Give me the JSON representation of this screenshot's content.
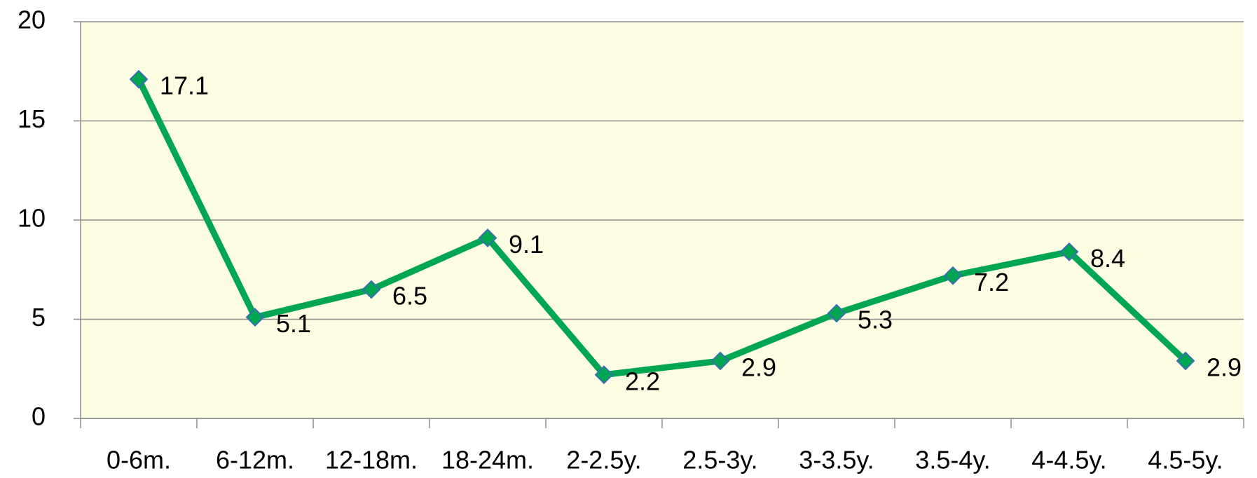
{
  "chart_data": {
    "type": "line",
    "categories": [
      "0-6m.",
      "6-12m.",
      "12-18m.",
      "18-24m.",
      "2-2.5y.",
      "2.5-3y.",
      "3-3.5y.",
      "3.5-4y.",
      "4-4.5y.",
      "4.5-5y."
    ],
    "values": [
      17.1,
      5.1,
      6.5,
      9.1,
      2.2,
      2.9,
      5.3,
      7.2,
      8.4,
      2.9
    ],
    "color": "#00a651",
    "marker_color": "#00a651",
    "ylim": [
      0,
      20
    ],
    "yticks": [
      0,
      5,
      10,
      15,
      20
    ],
    "grid": true,
    "background": "#fdfde4"
  }
}
